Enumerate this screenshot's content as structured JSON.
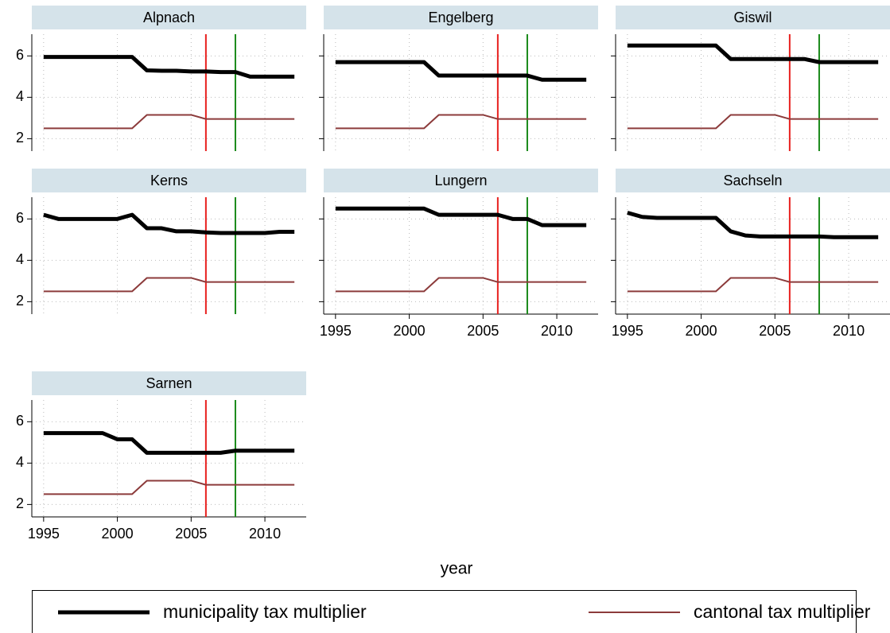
{
  "chart_data": {
    "type": "line",
    "xlabel": "year",
    "x": [
      1995,
      1996,
      1997,
      1998,
      1999,
      2000,
      2001,
      2002,
      2003,
      2004,
      2005,
      2006,
      2007,
      2008,
      2009,
      2010,
      2011,
      2012
    ],
    "xlim": [
      1994.2,
      2012.8
    ],
    "ylim": [
      1.4,
      7.05
    ],
    "xticks": [
      1995,
      2000,
      2005,
      2010
    ],
    "yticks": [
      2,
      4,
      6
    ],
    "grid": true,
    "series": [
      {
        "name": "municipality tax multiplier",
        "color": "#000000"
      },
      {
        "name": "cantonal tax multiplier",
        "color": "#8c3b3b"
      }
    ],
    "vlines": [
      {
        "value": 2006,
        "color": "#e8201e"
      },
      {
        "value": 2008,
        "color": "#1a8a1a"
      }
    ],
    "panels": [
      {
        "title": "Alpnach",
        "series": [
          {
            "values": [
              5.95,
              5.95,
              5.95,
              5.95,
              5.95,
              5.95,
              5.95,
              5.3,
              5.28,
              5.28,
              5.25,
              5.25,
              5.22,
              5.22,
              5.0,
              5.0,
              5.0,
              5.0
            ]
          },
          {
            "values": [
              2.5,
              2.5,
              2.5,
              2.5,
              2.5,
              2.5,
              2.5,
              3.15,
              3.15,
              3.15,
              3.15,
              2.95,
              2.95,
              2.95,
              2.95,
              2.95,
              2.95,
              2.95
            ]
          }
        ]
      },
      {
        "title": "Engelberg",
        "series": [
          {
            "values": [
              5.7,
              5.7,
              5.7,
              5.7,
              5.7,
              5.7,
              5.7,
              5.05,
              5.05,
              5.05,
              5.05,
              5.05,
              5.05,
              5.05,
              4.85,
              4.85,
              4.85,
              4.85
            ]
          },
          {
            "values": [
              2.5,
              2.5,
              2.5,
              2.5,
              2.5,
              2.5,
              2.5,
              3.15,
              3.15,
              3.15,
              3.15,
              2.95,
              2.95,
              2.95,
              2.95,
              2.95,
              2.95,
              2.95
            ]
          }
        ]
      },
      {
        "title": "Giswil",
        "series": [
          {
            "values": [
              6.5,
              6.5,
              6.5,
              6.5,
              6.5,
              6.5,
              6.5,
              5.85,
              5.85,
              5.85,
              5.85,
              5.85,
              5.85,
              5.7,
              5.7,
              5.7,
              5.7,
              5.7
            ]
          },
          {
            "values": [
              2.5,
              2.5,
              2.5,
              2.5,
              2.5,
              2.5,
              2.5,
              3.15,
              3.15,
              3.15,
              3.15,
              2.95,
              2.95,
              2.95,
              2.95,
              2.95,
              2.95,
              2.95
            ]
          }
        ]
      },
      {
        "title": "Kerns",
        "series": [
          {
            "values": [
              6.2,
              6.0,
              6.0,
              6.0,
              6.0,
              6.0,
              6.2,
              5.55,
              5.55,
              5.4,
              5.4,
              5.35,
              5.32,
              5.32,
              5.32,
              5.32,
              5.38,
              5.38
            ]
          },
          {
            "values": [
              2.5,
              2.5,
              2.5,
              2.5,
              2.5,
              2.5,
              2.5,
              3.15,
              3.15,
              3.15,
              3.15,
              2.95,
              2.95,
              2.95,
              2.95,
              2.95,
              2.95,
              2.95
            ]
          }
        ]
      },
      {
        "title": "Lungern",
        "series": [
          {
            "values": [
              6.5,
              6.5,
              6.5,
              6.5,
              6.5,
              6.5,
              6.5,
              6.2,
              6.2,
              6.2,
              6.2,
              6.2,
              6.0,
              6.0,
              5.7,
              5.7,
              5.7,
              5.7
            ]
          },
          {
            "values": [
              2.5,
              2.5,
              2.5,
              2.5,
              2.5,
              2.5,
              2.5,
              3.15,
              3.15,
              3.15,
              3.15,
              2.95,
              2.95,
              2.95,
              2.95,
              2.95,
              2.95,
              2.95
            ]
          }
        ]
      },
      {
        "title": "Sachseln",
        "series": [
          {
            "values": [
              6.3,
              6.1,
              6.05,
              6.05,
              6.05,
              6.05,
              6.05,
              5.4,
              5.2,
              5.15,
              5.15,
              5.15,
              5.15,
              5.15,
              5.12,
              5.12,
              5.12,
              5.12
            ]
          },
          {
            "values": [
              2.5,
              2.5,
              2.5,
              2.5,
              2.5,
              2.5,
              2.5,
              3.15,
              3.15,
              3.15,
              3.15,
              2.95,
              2.95,
              2.95,
              2.95,
              2.95,
              2.95,
              2.95
            ]
          }
        ]
      },
      {
        "title": "Sarnen",
        "series": [
          {
            "values": [
              5.45,
              5.45,
              5.45,
              5.45,
              5.45,
              5.15,
              5.15,
              4.5,
              4.5,
              4.5,
              4.5,
              4.5,
              4.5,
              4.6,
              4.6,
              4.6,
              4.6,
              4.6
            ]
          },
          {
            "values": [
              2.5,
              2.5,
              2.5,
              2.5,
              2.5,
              2.5,
              2.5,
              3.15,
              3.15,
              3.15,
              3.15,
              2.95,
              2.95,
              2.95,
              2.95,
              2.95,
              2.95,
              2.95
            ]
          }
        ]
      }
    ]
  }
}
